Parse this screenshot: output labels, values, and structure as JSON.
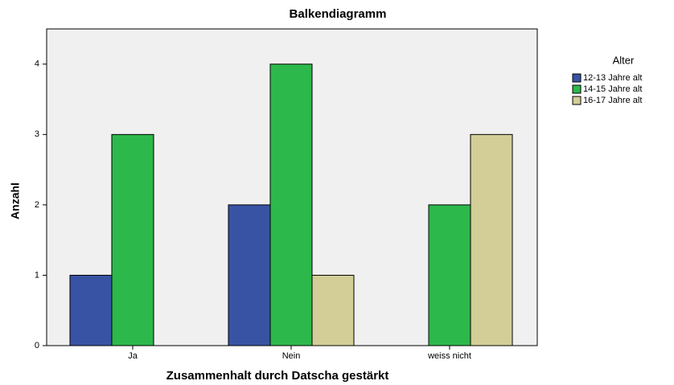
{
  "chart_data": {
    "type": "bar",
    "title": "Balkendiagramm",
    "x_label": "Zusammenhalt durch Datscha gestärkt",
    "y_label": "Anzahl",
    "categories": [
      "Ja",
      "Nein",
      "weiss nicht"
    ],
    "legend_title": "Alter",
    "series": [
      {
        "name": "12-13 Jahre alt",
        "color": "#3953a4",
        "values": [
          1,
          2,
          null
        ]
      },
      {
        "name": "14-15 Jahre alt",
        "color": "#2db84b",
        "values": [
          3,
          4,
          2
        ]
      },
      {
        "name": "16-17 Jahre alt",
        "color": "#d3ce97",
        "values": [
          null,
          1,
          3
        ]
      }
    ],
    "ylim": [
      0,
      4.5
    ],
    "yticks": [
      0,
      1,
      2,
      3,
      4
    ],
    "grid": false,
    "legend": "right"
  }
}
